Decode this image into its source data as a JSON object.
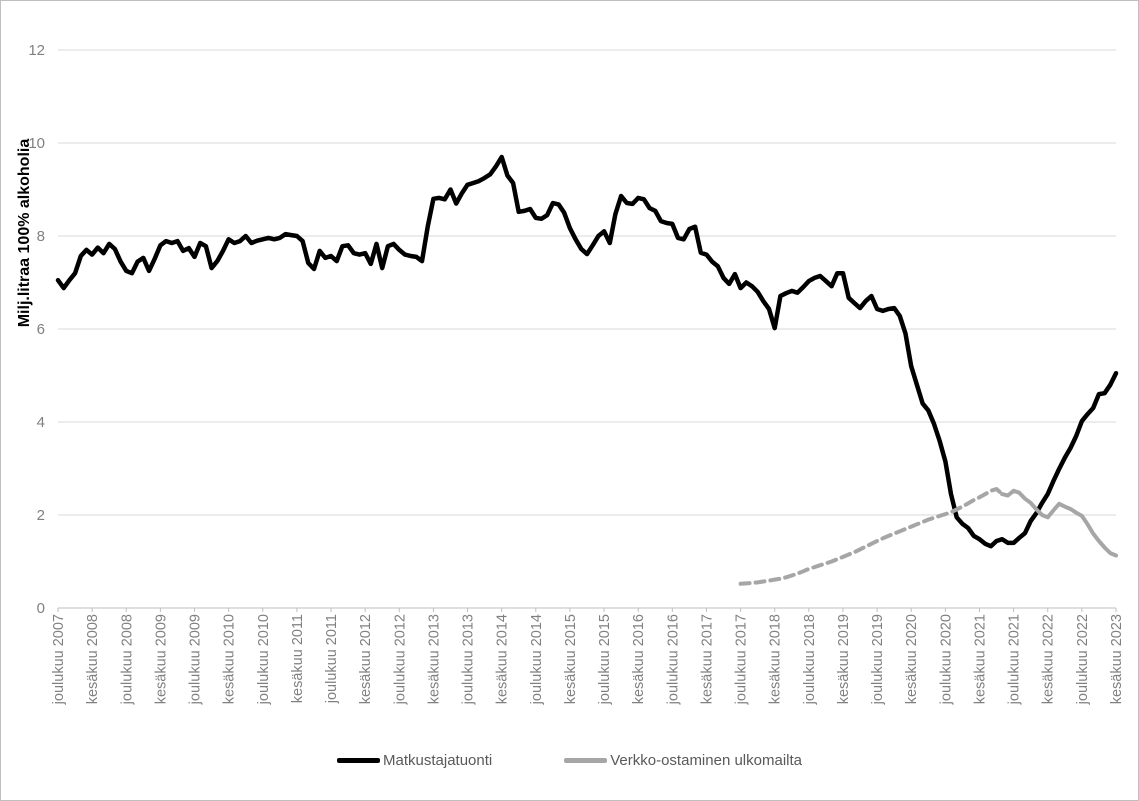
{
  "chart_data": {
    "type": "line",
    "title": "",
    "xlabel": "",
    "ylabel": "Milj.litraa 100% alkoholia",
    "ylim": [
      0,
      12
    ],
    "y_ticks": [
      0,
      2,
      4,
      6,
      8,
      10,
      12
    ],
    "grid": "horizontal",
    "legend_position": "bottom",
    "x_unit": "month",
    "n_months": 187,
    "x_tick_month_interval": 6,
    "x_tick_labels": [
      "joulukuu 2007",
      "kesäkuu 2008",
      "joulukuu 2008",
      "kesäkuu 2009",
      "joulukuu 2009",
      "kesäkuu 2010",
      "joulukuu 2010",
      "kesäkuu 2011",
      "joulukuu 2011",
      "kesäkuu 2012",
      "joulukuu 2012",
      "kesäkuu 2013",
      "joulukuu 2013",
      "kesäkuu 2014",
      "joulukuu 2014",
      "kesäkuu 2015",
      "joulukuu 2015",
      "kesäkuu 2016",
      "joulukuu 2016",
      "kesäkuu 2017",
      "joulukuu 2017",
      "kesäkuu 2018",
      "joulukuu 2018",
      "kesäkuu 2019",
      "joulukuu 2019",
      "kesäkuu 2020",
      "joulukuu 2020",
      "kesäkuu 2021",
      "joulukuu 2021",
      "kesäkuu 2022",
      "joulukuu 2022",
      "kesäkuu 2023"
    ],
    "series": [
      {
        "name": "Matkustajatuonti",
        "color": "#000000",
        "line_width": 4.5,
        "style": "solid",
        "start_month_index": 0,
        "values": [
          7.05,
          6.88,
          7.05,
          7.2,
          7.57,
          7.7,
          7.6,
          7.75,
          7.63,
          7.83,
          7.72,
          7.45,
          7.25,
          7.2,
          7.45,
          7.53,
          7.25,
          7.51,
          7.8,
          7.89,
          7.85,
          7.89,
          7.68,
          7.74,
          7.55,
          7.85,
          7.78,
          7.31,
          7.46,
          7.68,
          7.93,
          7.85,
          7.89,
          8.0,
          7.85,
          7.9,
          7.93,
          7.96,
          7.93,
          7.96,
          8.04,
          8.02,
          8.0,
          7.89,
          7.42,
          7.29,
          7.68,
          7.53,
          7.57,
          7.46,
          7.78,
          7.8,
          7.63,
          7.6,
          7.63,
          7.4,
          7.83,
          7.31,
          7.78,
          7.83,
          7.7,
          7.6,
          7.57,
          7.55,
          7.46,
          8.2,
          8.8,
          8.82,
          8.79,
          9.0,
          8.7,
          8.92,
          9.1,
          9.14,
          9.18,
          9.25,
          9.33,
          9.5,
          9.7,
          9.3,
          9.14,
          8.52,
          8.54,
          8.58,
          8.39,
          8.37,
          8.45,
          8.71,
          8.68,
          8.5,
          8.17,
          7.93,
          7.72,
          7.61,
          7.8,
          8.0,
          8.1,
          7.85,
          8.47,
          8.86,
          8.71,
          8.69,
          8.82,
          8.79,
          8.6,
          8.54,
          8.32,
          8.28,
          8.26,
          7.96,
          7.93,
          8.15,
          8.2,
          7.64,
          7.6,
          7.45,
          7.35,
          7.1,
          6.97,
          7.18,
          6.88,
          7.0,
          6.92,
          6.8,
          6.6,
          6.43,
          6.02,
          6.71,
          6.77,
          6.82,
          6.78,
          6.9,
          7.03,
          7.1,
          7.14,
          7.03,
          6.92,
          7.2,
          7.2,
          6.67,
          6.56,
          6.45,
          6.6,
          6.71,
          6.43,
          6.39,
          6.43,
          6.45,
          6.28,
          5.9,
          5.2,
          4.8,
          4.4,
          4.25,
          3.96,
          3.59,
          3.15,
          2.45,
          1.95,
          1.81,
          1.72,
          1.55,
          1.48,
          1.38,
          1.33,
          1.44,
          1.48,
          1.4,
          1.4,
          1.51,
          1.61,
          1.87,
          2.04,
          2.26,
          2.45,
          2.73,
          2.99,
          3.23,
          3.44,
          3.7,
          4.02,
          4.17,
          4.3,
          4.6,
          4.62,
          4.8,
          5.05
        ]
      },
      {
        "name": "Verkko-ostaminen ulkomailta",
        "color": "#a6a6a6",
        "line_width": 4,
        "style": "dashed-then-solid",
        "start_month_index": 120,
        "dash_until_index": 46,
        "values": [
          0.52,
          0.53,
          0.54,
          0.55,
          0.57,
          0.59,
          0.61,
          0.63,
          0.66,
          0.7,
          0.74,
          0.79,
          0.84,
          0.88,
          0.92,
          0.96,
          1.0,
          1.05,
          1.1,
          1.15,
          1.2,
          1.26,
          1.32,
          1.38,
          1.44,
          1.5,
          1.55,
          1.6,
          1.65,
          1.7,
          1.75,
          1.8,
          1.85,
          1.9,
          1.94,
          1.98,
          2.02,
          2.06,
          2.12,
          2.18,
          2.25,
          2.32,
          2.38,
          2.45,
          2.52,
          2.56,
          2.45,
          2.42,
          2.52,
          2.48,
          2.35,
          2.26,
          2.12,
          2.0,
          1.95,
          2.1,
          2.24,
          2.18,
          2.13,
          2.05,
          1.98,
          1.8,
          1.6,
          1.44,
          1.3,
          1.18,
          1.13
        ]
      }
    ]
  },
  "colors": {
    "background": "#ffffff",
    "border": "#bfbfbf",
    "gridline": "#d9d9d9",
    "axis": "#bfbfbf",
    "tick_label": "#808080",
    "legend_text": "#595959"
  }
}
